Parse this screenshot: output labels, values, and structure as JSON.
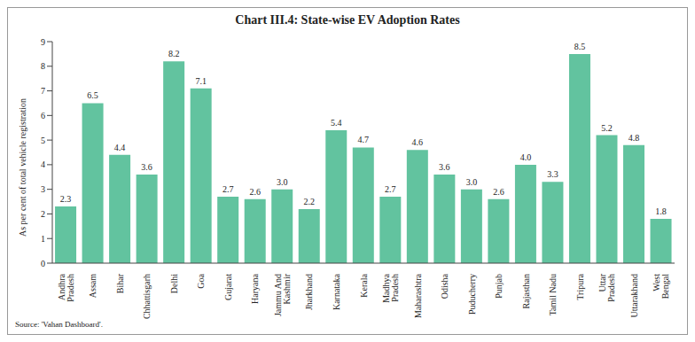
{
  "chart_data": {
    "type": "bar",
    "title": "Chart III.4: State-wise EV Adoption Rates",
    "y_label": "As per cent of total vehicle registration",
    "source": "Source: 'Vahan Dashboard'.",
    "categories": [
      "Andhra Pradesh",
      "Assam",
      "Bihar",
      "Chhattisgarh",
      "Delhi",
      "Goa",
      "Gujarat",
      "Haryana",
      "Jammu And Kashmir",
      "Jharkhand",
      "Karnataka",
      "Kerala",
      "Madhya Pradesh",
      "Maharashtra",
      "Odisha",
      "Puducherry",
      "Punjab",
      "Rajasthan",
      "Tamil Nadu",
      "Tripura",
      "Uttar Pradesh",
      "Uttarakhand",
      "West Bengal"
    ],
    "values": [
      2.3,
      6.5,
      4.4,
      3.6,
      8.2,
      7.1,
      2.7,
      2.6,
      3.0,
      2.2,
      5.4,
      4.7,
      2.7,
      4.6,
      3.6,
      3.0,
      2.6,
      4.0,
      3.3,
      8.5,
      5.2,
      4.8,
      1.8
    ],
    "color": "#62c39f",
    "ylim": [
      0,
      9
    ],
    "yticks": [
      0,
      1,
      2,
      3,
      4,
      5,
      6,
      7,
      8,
      9
    ],
    "grid": false,
    "data_labels": true
  }
}
